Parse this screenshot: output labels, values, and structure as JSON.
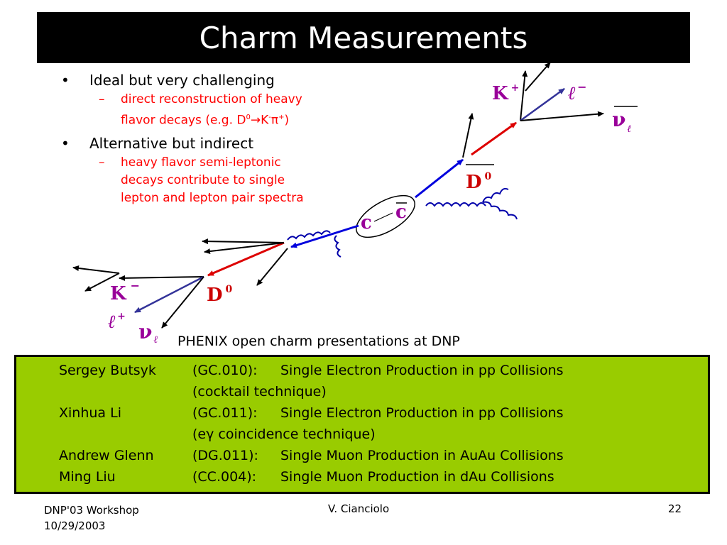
{
  "slide": {
    "title": "Charm Measurements",
    "bullets": [
      {
        "label": "Ideal but very challenging",
        "sub": {
          "line1": "direct reconstruction of heavy",
          "line2a": "flavor decays (e.g. D",
          "sup1": "0",
          "arrow": "→",
          "line2b": "K",
          "sup2": "-",
          "pi": "π",
          "sup3": "+",
          "close": ")"
        }
      },
      {
        "label": "Alternative but indirect",
        "sub": {
          "line1": "heavy flavor semi-leptonic",
          "line2": "decays contribute to single",
          "line3": "lepton and lepton pair spectra"
        }
      }
    ],
    "bullet_glyph": "•",
    "dash_glyph": "–",
    "diagram_labels": {
      "K_plus": "K",
      "K_plus_sup": "+",
      "ell_minus": "ℓ",
      "ell_minus_sup": "−",
      "nu_bar": "ν",
      "nu_bar_sub": "ℓ",
      "D0_bar": "D",
      "D0_bar_sup": "0",
      "c": "c",
      "c_bar": "c",
      "K_minus": "K",
      "K_minus_sup": "−",
      "D0": "D",
      "D0_sup": "0",
      "ell_plus": "ℓ",
      "ell_plus_sup": "+",
      "nu": "ν",
      "nu_sub": "ℓ"
    },
    "caption": "PHENIX open charm presentations at DNP",
    "presentations": [
      {
        "name": "Sergey Butsyk",
        "code": "(GC.010):",
        "title": "Single Electron Production in pp Collisions",
        "note": "(cocktail technique)"
      },
      {
        "name": "Xinhua Li",
        "code": "(GC.011):",
        "title": "Single Electron Production in pp Collisions",
        "note": "(eγ coincidence technique)"
      },
      {
        "name": "Andrew Glenn",
        "code": "(DG.011):",
        "title": "Single Muon Production in AuAu Collisions",
        "note": ""
      },
      {
        "name": "Ming Liu",
        "code": "(CC.004):",
        "title": "Single Muon Production in dAu Collisions",
        "note": ""
      }
    ],
    "footer": {
      "left_line1": "DNP'03 Workshop",
      "left_line2": "10/29/2003",
      "center": "V. Cianciolo",
      "page": "22"
    },
    "colors": {
      "title_bg": "#000000",
      "box_bg": "#99cc00",
      "red_text": "#ff0000",
      "label_purple": "#990099",
      "label_red": "#cc0000",
      "track_red": "#dd0000",
      "track_blue": "#0000dd"
    }
  }
}
